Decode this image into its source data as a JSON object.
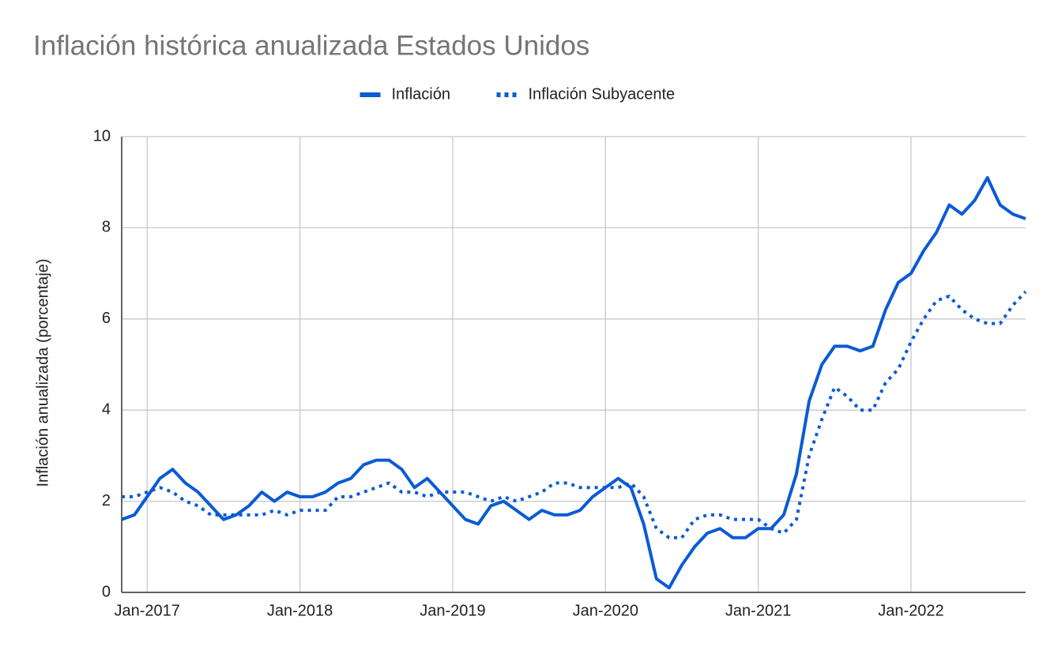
{
  "chart_data": {
    "type": "line",
    "title": "Inflación histórica anualizada Estados Unidos",
    "ylabel": "Inflación anualizada (porcentaje)",
    "categories": [
      null,
      null,
      "Jan-2017",
      null,
      null,
      null,
      null,
      null,
      null,
      null,
      null,
      null,
      null,
      null,
      "Jan-2018",
      null,
      null,
      null,
      null,
      null,
      null,
      null,
      null,
      null,
      null,
      null,
      "Jan-2019",
      null,
      null,
      null,
      null,
      null,
      null,
      null,
      null,
      null,
      null,
      null,
      "Jan-2020",
      null,
      null,
      null,
      null,
      null,
      null,
      null,
      null,
      null,
      null,
      null,
      "Jan-2021",
      null,
      null,
      null,
      null,
      null,
      null,
      null,
      null,
      null,
      null,
      null,
      "Jan-2022",
      null,
      null,
      null,
      null,
      null,
      null,
      null,
      null,
      null
    ],
    "series": [
      {
        "name": "Inflación",
        "color": "#0b5bd3",
        "style": "solid",
        "values": [
          1.6,
          1.7,
          2.1,
          2.5,
          2.7,
          2.4,
          2.2,
          1.9,
          1.6,
          1.7,
          1.9,
          2.2,
          2.0,
          2.2,
          2.1,
          2.1,
          2.2,
          2.4,
          2.5,
          2.8,
          2.9,
          2.9,
          2.7,
          2.3,
          2.5,
          2.2,
          1.9,
          1.6,
          1.5,
          1.9,
          2.0,
          1.8,
          1.6,
          1.8,
          1.7,
          1.7,
          1.8,
          2.1,
          2.3,
          2.5,
          2.3,
          1.5,
          0.3,
          0.1,
          0.6,
          1.0,
          1.3,
          1.4,
          1.2,
          1.2,
          1.4,
          1.4,
          1.7,
          2.6,
          4.2,
          5.0,
          5.4,
          5.4,
          5.3,
          5.4,
          6.2,
          6.8,
          7.0,
          7.5,
          7.9,
          8.5,
          8.3,
          8.6,
          9.1,
          8.5,
          8.3,
          8.2
        ]
      },
      {
        "name": "Inflación Subyacente",
        "color": "#0b5bd3",
        "style": "dotted",
        "values": [
          2.1,
          2.1,
          2.2,
          2.3,
          2.2,
          2.0,
          1.9,
          1.7,
          1.7,
          1.7,
          1.7,
          1.7,
          1.8,
          1.7,
          1.8,
          1.8,
          1.8,
          2.1,
          2.1,
          2.2,
          2.3,
          2.4,
          2.2,
          2.2,
          2.1,
          2.2,
          2.2,
          2.2,
          2.1,
          2.0,
          2.1,
          2.0,
          2.1,
          2.2,
          2.4,
          2.4,
          2.3,
          2.3,
          2.3,
          2.3,
          2.4,
          2.1,
          1.4,
          1.2,
          1.2,
          1.6,
          1.7,
          1.7,
          1.6,
          1.6,
          1.6,
          1.4,
          1.3,
          1.6,
          3.0,
          3.8,
          4.5,
          4.3,
          4.0,
          4.0,
          4.6,
          4.9,
          5.5,
          6.0,
          6.4,
          6.5,
          6.2,
          6.0,
          5.9,
          5.9,
          6.3,
          6.6
        ]
      }
    ],
    "ylim": [
      0,
      10
    ],
    "yticks": [
      0,
      2,
      4,
      6,
      8,
      10
    ],
    "grid": true,
    "legend": "top"
  }
}
